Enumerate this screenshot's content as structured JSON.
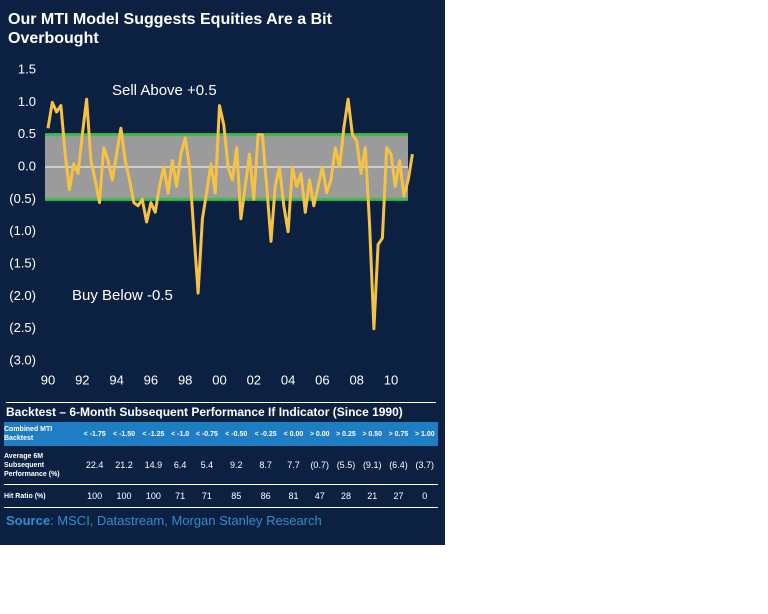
{
  "chart_data": {
    "type": "line",
    "title": "Our MTI Model Suggests Equities Are a Bit Overbought",
    "annotations": [
      "Sell Above +0.5",
      "Buy Below -0.5"
    ],
    "band": [
      -0.5,
      0.5
    ],
    "band_color": "#9b9b9b",
    "band_edge_color": "#3dbb4c",
    "color": "#f6c244",
    "x": [
      1990.0,
      1990.25,
      1990.5,
      1990.75,
      1991.0,
      1991.25,
      1991.5,
      1991.75,
      1992.0,
      1992.25,
      1992.5,
      1992.75,
      1993.0,
      1993.25,
      1993.5,
      1993.75,
      1994.0,
      1994.25,
      1994.5,
      1994.75,
      1995.0,
      1995.25,
      1995.5,
      1995.75,
      1996.0,
      1996.25,
      1996.5,
      1996.75,
      1997.0,
      1997.25,
      1997.5,
      1997.75,
      1998.0,
      1998.25,
      1998.5,
      1998.75,
      1999.0,
      1999.25,
      1999.5,
      1999.75,
      2000.0,
      2000.25,
      2000.5,
      2000.75,
      2001.0,
      2001.25,
      2001.5,
      2001.75,
      2002.0,
      2002.25,
      2002.5,
      2002.75,
      2003.0,
      2003.25,
      2003.5,
      2003.75,
      2004.0,
      2004.25,
      2004.5,
      2004.75,
      2005.0,
      2005.25,
      2005.5,
      2005.75,
      2006.0,
      2006.25,
      2006.5,
      2006.75,
      2007.0,
      2007.25,
      2007.5,
      2007.75,
      2008.0,
      2008.25,
      2008.5,
      2008.75,
      2009.0,
      2009.25,
      2009.5,
      2009.75,
      2010.0,
      2010.25,
      2010.5,
      2010.75,
      2011.0,
      2011.25
    ],
    "values": [
      0.6,
      1.0,
      0.85,
      0.95,
      0.2,
      -0.35,
      0.05,
      -0.1,
      0.5,
      1.05,
      0.1,
      -0.2,
      -0.55,
      0.3,
      0.1,
      -0.2,
      0.2,
      0.6,
      0.1,
      -0.2,
      -0.55,
      -0.6,
      -0.5,
      -0.85,
      -0.55,
      -0.7,
      -0.3,
      0.0,
      -0.4,
      0.1,
      -0.3,
      0.2,
      0.45,
      0.0,
      -1.0,
      -1.95,
      -0.8,
      -0.4,
      0.05,
      -0.4,
      0.95,
      0.65,
      0.0,
      -0.2,
      0.3,
      -0.8,
      -0.3,
      0.2,
      -0.5,
      0.5,
      0.5,
      -0.3,
      -1.15,
      -0.3,
      0.0,
      -0.6,
      -1.0,
      0.0,
      -0.3,
      -0.1,
      -0.7,
      -0.2,
      -0.6,
      -0.3,
      0.0,
      -0.4,
      -0.2,
      0.3,
      0.0,
      0.6,
      1.05,
      0.5,
      0.4,
      -0.1,
      0.3,
      -0.9,
      -2.5,
      -1.2,
      -1.1,
      0.3,
      0.2,
      -0.3,
      0.1,
      -0.45,
      -0.2,
      0.2
    ],
    "xlim": [
      1990,
      2011.3
    ],
    "xticks": [
      {
        "value": 1990,
        "label": "90"
      },
      {
        "value": 1992,
        "label": "92"
      },
      {
        "value": 1994,
        "label": "94"
      },
      {
        "value": 1996,
        "label": "96"
      },
      {
        "value": 1998,
        "label": "98"
      },
      {
        "value": 2000,
        "label": "00"
      },
      {
        "value": 2002,
        "label": "02"
      },
      {
        "value": 2004,
        "label": "04"
      },
      {
        "value": 2006,
        "label": "06"
      },
      {
        "value": 2008,
        "label": "08"
      },
      {
        "value": 2010,
        "label": "10"
      }
    ],
    "ylim": [
      -3.0,
      1.5
    ],
    "yticks": [
      1.5,
      {
        "value": 1,
        "label": "1.0"
      },
      0.5,
      {
        "value": 0,
        "label": "0.0"
      },
      {
        "value": -0.5,
        "label": "(0.5)"
      },
      {
        "value": -1,
        "label": "(1.0)"
      },
      {
        "value": -1.5,
        "label": "(1.5)"
      },
      {
        "value": -2,
        "label": "(2.0)"
      },
      {
        "value": -2.5,
        "label": "(2.5)"
      },
      {
        "value": -3,
        "label": "(3.0)"
      }
    ]
  },
  "table": {
    "title": "Backtest – 6-Month Subsequent Performance If Indicator (Since 1990)",
    "header": [
      "Combined MTI Backtest",
      "< -1.75",
      "< -1.50",
      "< -1.25",
      "< -1.0",
      "< -0.75",
      "< -0.50",
      "< -0.25",
      "< 0.00",
      "> 0.00",
      "> 0.25",
      "> 0.50",
      "> 0.75",
      "> 1.00"
    ],
    "rows": [
      [
        "Average 6M Subsequent Performance (%)",
        "22.4",
        "21.2",
        "14.9",
        "6.4",
        "5.4",
        "9.2",
        "8.7",
        "7.7",
        "(0.7)",
        "(5.5)",
        "(9.1)",
        "(6.4)",
        "(3.7)"
      ],
      [
        "Hit Ratio (%)",
        "100",
        "100",
        "100",
        "71",
        "71",
        "85",
        "86",
        "81",
        "47",
        "28",
        "21",
        "27",
        "0"
      ]
    ]
  },
  "source": {
    "label": "Source",
    "text": ": MSCI, Datastream, Morgan Stanley Research"
  }
}
